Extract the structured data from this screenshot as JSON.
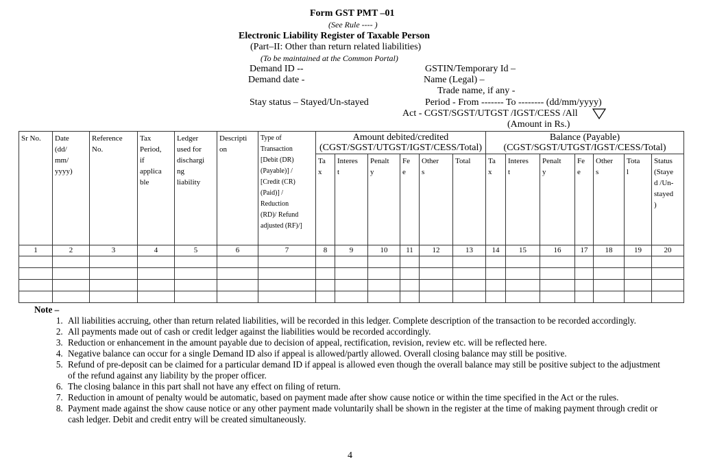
{
  "header": {
    "title": "Form GST PMT –01",
    "rule": "(See Rule ---- )",
    "subtitle": "Electronic Liability Register  of Taxable Person",
    "part": "(Part–II: Other than return related liabilities)",
    "maintained": "(To be maintained at the Common Portal)",
    "demand_id": "Demand ID --",
    "demand_date": "Demand date -",
    "stay_status": "Stay status – Stayed/Un-stayed",
    "gstin": "GSTIN/Temporary Id –",
    "name_legal": "Name (Legal) –",
    "trade_name": "Trade name, if any -",
    "period": "Period - From ------- To -------- (dd/mm/yyyy)",
    "act": "Act - CGST/SGST/UTGST /IGST/CESS /All",
    "act_dropdown_icon": "triangle-down-icon",
    "amount_unit": "(Amount in Rs.)"
  },
  "table": {
    "columns": [
      "Sr No.",
      "Date\n(dd/\nmm/\nyyyy)",
      "Reference\nNo.",
      "Tax\nPeriod,\nif\napplica\nble",
      "Ledger\nused  for\ndischargi\nng\nliability",
      "Descripti\non",
      "Type of\nTransaction\n[Debit (DR)\n(Payable)] /\n[Credit (CR)\n(Paid)] /\nReduction\n(RD)/ Refund\nadjusted (RF)/]"
    ],
    "group_debited": "Amount debited/credited\n(CGST/SGST/UTGST/IGST/CESS/Total)",
    "group_balance": "Balance (Payable)\n(CGST/SGST/UTGST/IGST/CESS/Total)",
    "debited_columns": [
      "Ta\nx",
      "Interes\nt",
      "Penalt\ny",
      "Fe\ne",
      "Other\ns",
      "Total"
    ],
    "balance_columns": [
      "Ta\nx",
      "Interes\nt",
      "Penalt\ny",
      "Fe\ne",
      "Other\ns",
      "Tota\nl",
      "Status\n(Staye\nd /Un-\nstayed\n)"
    ],
    "numbers": [
      "1",
      "2",
      "3",
      "4",
      "5",
      "6",
      "7",
      "8",
      "9",
      "10",
      "11",
      "12",
      "13",
      "14",
      "15",
      "16",
      "17",
      "18",
      "19",
      "20"
    ]
  },
  "notes": {
    "heading": "Note –",
    "items": [
      "All liabilities accruing, other than return related liabilities, will be recorded in this ledger. Complete description of the transaction to be recorded accordingly.",
      "All payments made out of cash or credit ledger against the liabilities would be recorded accordingly.",
      "Reduction or enhancement in the amount payable due to decision of appeal, rectification, revision, review etc. will be reflected here.",
      "Negative balance can occur for a single Demand ID also if appeal is allowed/partly allowed. Overall closing balance may still be positive.",
      "Refund of pre-deposit can be claimed for a particular demand ID if appeal is allowed even though the overall balance may still be positive subject to the adjustment of the refund against any liability by the proper officer.",
      "The closing balance in this part shall not have any effect on filing of return.",
      "Reduction in amount of penalty would be automatic, based on payment made after show cause notice or within the time specified in the Act or the rules.",
      "Payment made against the show cause notice or any other payment made voluntarily shall be shown in the register at the time of making payment through credit or cash ledger. Debit and credit entry will be created simultaneously."
    ]
  },
  "page_number": "4"
}
